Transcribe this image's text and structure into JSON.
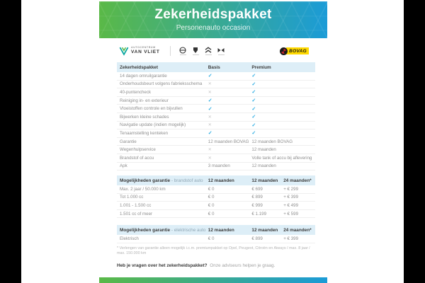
{
  "colors": {
    "gradient_from": "#5ab947",
    "gradient_to": "#1b9bd7",
    "check": "#29abe2",
    "cross": "#c6c6c6",
    "section_bg": "#ddeef7",
    "bovag_yellow": "#ffd900"
  },
  "banner": {
    "title": "Zekerheidspakket",
    "subtitle": "Personenauto occasion"
  },
  "branding": {
    "dealer_line1": "AUTOCENTRUM",
    "dealer_line2": "VAN VLIET",
    "brand_icons": [
      "opel",
      "peugeot",
      "citroen",
      "ds"
    ],
    "bovag_label": "BOVAG"
  },
  "package_table": {
    "header_label": "Zekerheidspakket",
    "cols": [
      "Basis",
      "Premium"
    ],
    "rows": [
      {
        "label": "14 dagen omruilgarantie",
        "basis": "check",
        "premium": "check"
      },
      {
        "label": "Onderhoudsbeurt volgens fabrieksschema",
        "basis": "cross",
        "premium": "check"
      },
      {
        "label": "40-puntencheck",
        "basis": "cross",
        "premium": "check"
      },
      {
        "label": "Reiniging in- en exterieur",
        "basis": "check",
        "premium": "check"
      },
      {
        "label": "Vloeistoffen controle en bijvullen",
        "basis": "check",
        "premium": "check"
      },
      {
        "label": "Bijwerken kleine schades",
        "basis": "cross",
        "premium": "check"
      },
      {
        "label": "Navigatie update (indien mogelijk)",
        "basis": "cross",
        "premium": "check"
      },
      {
        "label": "Tenaamstelling kenteken",
        "basis": "check",
        "premium": "check"
      },
      {
        "label": "Garantie",
        "basis": "12 maanden BOVAG",
        "premium": "12 maanden BOVAG"
      },
      {
        "label": "Wegenhulpservice",
        "basis": "cross",
        "premium": "12 maanden"
      },
      {
        "label": "Brandstof of accu",
        "basis": "cross",
        "premium": "Volle tank of accu bij aflevering"
      },
      {
        "label": "Apk",
        "basis": "3 maanden",
        "premium": "12 maanden"
      }
    ]
  },
  "fuel_table": {
    "header_bold": "Mogelijkheden garantie",
    "header_sub": "- brandstof auto",
    "cols": [
      "12 maanden",
      "12 maanden",
      "24 maanden*"
    ],
    "rows": [
      {
        "label": "Max. 2 jaar / 50.000 km",
        "c1": "€ 0",
        "c2": "€ 699",
        "c3": "+ € 299"
      },
      {
        "label": "Tot 1.000 cc",
        "c1": "€ 0",
        "c2": "€ 899",
        "c3": "+ € 399"
      },
      {
        "label": "1.001 - 1.500 cc",
        "c1": "€ 0",
        "c2": "€ 999",
        "c3": "+ € 499"
      },
      {
        "label": "1.501 cc of meer",
        "c1": "€ 0",
        "c2": "€ 1.199",
        "c3": "+ € 599"
      }
    ]
  },
  "electric_table": {
    "header_bold": "Mogelijkheden garantie",
    "header_sub": "- elektrische auto",
    "cols": [
      "12 maanden",
      "12 maanden",
      "24 maanden*"
    ],
    "rows": [
      {
        "label": "Elektrisch",
        "c1": "€ 0",
        "c2": "€ 899",
        "c3": "+ € 399"
      }
    ]
  },
  "footnote": "* Verlengen van garantie alleen mogelijk i.c.m. premiumpakket op Opel, Peugeot, Citroën en Aiways / max. 8 jaar / max. 150.000 km",
  "footer_question": {
    "bold": "Heb je vragen over het zekerheidspakket?",
    "rest": "Onze adviseurs helpen je graag."
  }
}
